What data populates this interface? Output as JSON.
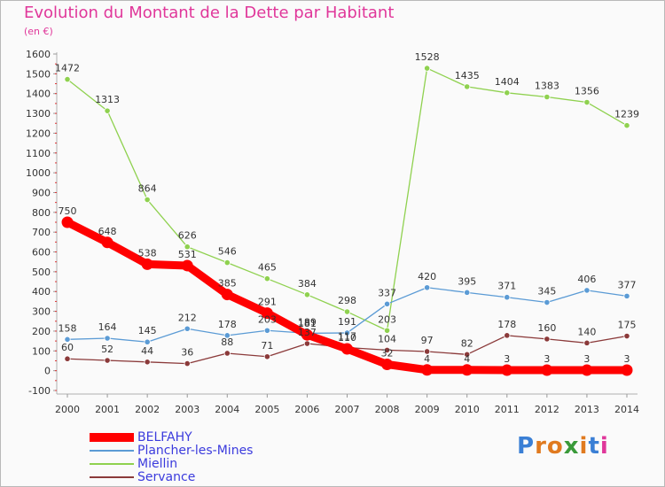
{
  "title": "Evolution du Montant de la Dette par Habitant",
  "subtitle": "(en €)",
  "logo": {
    "text": "Proxiti",
    "colors": [
      "#3a7fd5",
      "#e07a1f",
      "#e07a1f",
      "#3a9a3a",
      "#e07a1f",
      "#3a7fd5",
      "#e0379a"
    ]
  },
  "chart_data": {
    "type": "line",
    "x": [
      "2000",
      "2001",
      "2002",
      "2003",
      "2004",
      "2005",
      "2006",
      "2007",
      "2008",
      "2009",
      "2010",
      "2011",
      "2012",
      "2013",
      "2014"
    ],
    "yticks": [
      "-100",
      "0",
      "100",
      "200",
      "300",
      "400",
      "500",
      "600",
      "700",
      "800",
      "900",
      "1000",
      "1100",
      "1200",
      "1300",
      "1400",
      "1500",
      "1600"
    ],
    "ylim": [
      -100,
      1600
    ],
    "grid": false,
    "legend_position": "bottom-left",
    "series": [
      {
        "name": "BELFAHY",
        "color": "#ff0000",
        "values": [
          750,
          648,
          538,
          531,
          385,
          291,
          181,
          110,
          32,
          4,
          4,
          3,
          3,
          3,
          3
        ],
        "labels": [
          "750",
          "648",
          "538",
          "531",
          "385",
          "291",
          "181",
          "110",
          "32",
          "4",
          "4",
          "3",
          "3",
          "3",
          "3"
        ]
      },
      {
        "name": "Plancher-les-Mines",
        "color": "#5b9bd5",
        "values": [
          158,
          164,
          145,
          212,
          178,
          203,
          189,
          191,
          337,
          420,
          395,
          371,
          345,
          406,
          377
        ],
        "labels": [
          "158",
          "164",
          "145",
          "212",
          "178",
          "203",
          "189",
          "191",
          "337",
          "420",
          "395",
          "371",
          "345",
          "406",
          "377"
        ]
      },
      {
        "name": "Miellin",
        "color": "#8fd14f",
        "values": [
          1472,
          1313,
          864,
          626,
          546,
          465,
          384,
          298,
          203,
          1528,
          1435,
          1404,
          1383,
          1356,
          1239
        ],
        "labels": [
          "1472",
          "1313",
          "864",
          "626",
          "546",
          "465",
          "384",
          "298",
          "203",
          "1528",
          "1435",
          "1404",
          "1383",
          "1356",
          "1239"
        ]
      },
      {
        "name": "Servance",
        "color": "#8b3a3a",
        "values": [
          60,
          52,
          44,
          36,
          88,
          71,
          137,
          117,
          104,
          97,
          82,
          178,
          160,
          140,
          175
        ],
        "labels": [
          "60",
          "52",
          "44",
          "36",
          "88",
          "71",
          "137",
          "117",
          "104",
          "97",
          "82",
          "178",
          "160",
          "140",
          "175"
        ]
      }
    ]
  }
}
